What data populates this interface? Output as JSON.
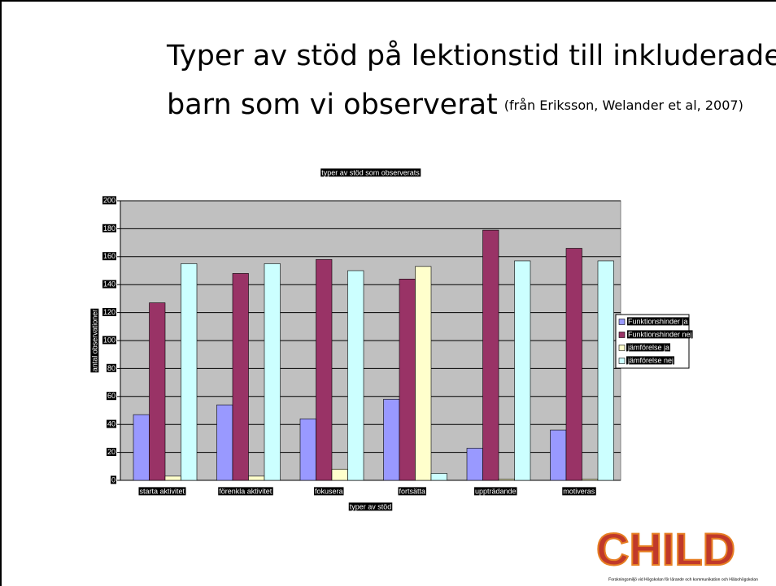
{
  "slide": {
    "title_line1": "Typer av stöd  på lektionstid till inkluderade",
    "title_line2": "barn som vi observerat",
    "citation": "(från Eriksson, Welander et al, 2007)",
    "logo": "CHILD",
    "logo_caption": "Forskningsmiljö vid Högskolan för lärande och kommunikation och Hälsohögskolan"
  },
  "chart_data": {
    "type": "bar",
    "title": "typer av stöd som observerats",
    "x_label": "typer av stöd",
    "y_label": "antal observationer",
    "categories": [
      "starta aktivitet",
      "förenkla aktivitet",
      "fokusera",
      "fortsätta",
      "uppträdande",
      "motiveras"
    ],
    "series": [
      {
        "name": "Funktionshinder ja",
        "color": "#9999ff",
        "values": [
          47,
          54,
          44,
          58,
          23,
          36
        ]
      },
      {
        "name": "Funktionshinder nej",
        "color": "#993366",
        "values": [
          127,
          148,
          158,
          144,
          179,
          166
        ]
      },
      {
        "name": "jämförelse ja",
        "color": "#ffffcc",
        "values": [
          3,
          3,
          8,
          153,
          1,
          1
        ]
      },
      {
        "name": "jämförelse nej",
        "color": "#ccffff",
        "values": [
          155,
          155,
          150,
          5,
          157,
          157
        ]
      }
    ],
    "ylim": [
      0,
      200
    ],
    "yticks": [
      0,
      20,
      40,
      60,
      80,
      100,
      120,
      140,
      160,
      180,
      200
    ],
    "grid": true,
    "legend": "right",
    "background": "#c0c0c0"
  }
}
